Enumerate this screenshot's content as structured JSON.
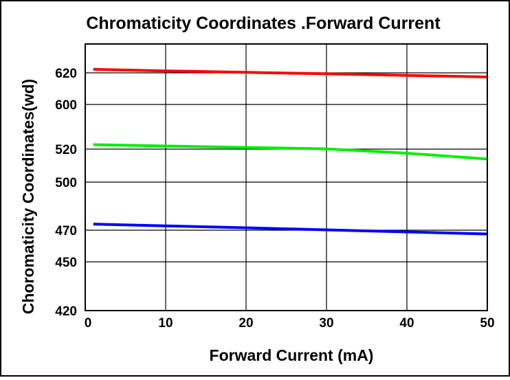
{
  "chart_data": {
    "type": "line",
    "title": "Chromaticity Coordinates .Forward Current",
    "xlabel": "Forward Current (mA)",
    "ylabel": "Choromaticity Coordinates(wd)",
    "x_ticks": [
      0,
      10,
      20,
      30,
      40,
      50
    ],
    "y_ticks": [
      420,
      450,
      470,
      500,
      520,
      600,
      620
    ],
    "xlim": [
      0,
      50
    ],
    "grid": true,
    "y_axis_note": "non-linear: tick labels placed at fixed gridline positions",
    "series": [
      {
        "color": "#ff0000",
        "x": [
          1,
          10,
          20,
          30,
          40,
          50
        ],
        "y": [
          622.2,
          621.2,
          620.3,
          619.4,
          618.4,
          617.4
        ]
      },
      {
        "color": "#00ee00",
        "x": [
          1,
          10,
          20,
          30,
          40,
          50
        ],
        "y": [
          528.0,
          525.5,
          523.0,
          520.5,
          517.5,
          514.0
        ]
      },
      {
        "color": "#0000ff",
        "x": [
          1,
          10,
          20,
          30,
          40,
          50
        ],
        "y": [
          473.8,
          472.7,
          471.5,
          470.2,
          468.9,
          467.6
        ]
      }
    ]
  }
}
